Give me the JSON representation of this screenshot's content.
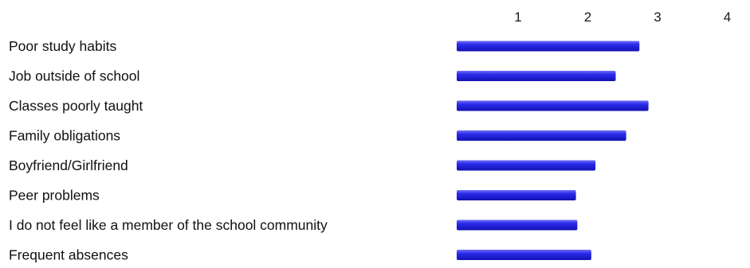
{
  "chart_data": {
    "type": "bar",
    "orientation": "horizontal",
    "categories": [
      "Poor study habits",
      "Job outside of school",
      "Classes poorly taught",
      "Family obligations",
      "Boyfriend/Girlfriend",
      "Peer problems",
      "I do not feel like a member of the school community",
      "Frequent absences"
    ],
    "values": [
      2.74,
      2.4,
      2.87,
      2.55,
      2.11,
      1.83,
      1.85,
      2.05
    ],
    "xticks": [
      "1",
      "2",
      "3",
      "4"
    ],
    "xlim": [
      0.73,
      4.0
    ],
    "x_axis_position": "top",
    "grid": false,
    "legend": "none",
    "title": "",
    "xlabel": "",
    "ylabel": "",
    "colors": {
      "bar_light": "#6f6ff7",
      "bar_main": "#2b2bea",
      "bar_dark": "#1212b4",
      "text": "#111111"
    }
  }
}
